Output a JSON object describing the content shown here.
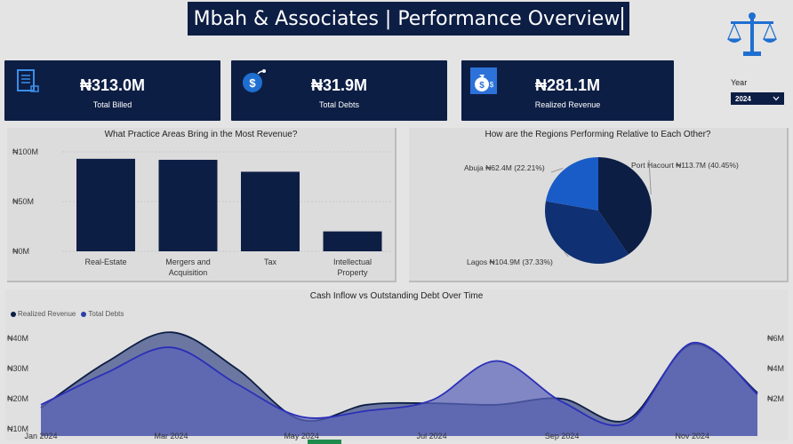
{
  "header": {
    "title": "Mbah & Associates | Performance Overview",
    "logo_icon": "scales-of-justice-icon"
  },
  "kpis": [
    {
      "value": "₦313.0M",
      "label": "Total Billed",
      "icon": "document-icon"
    },
    {
      "value": "₦31.9M",
      "label": "Total Debts",
      "icon": "money-bomb-icon"
    },
    {
      "value": "₦281.1M",
      "label": "Realized Revenue",
      "icon": "money-bag-icon"
    }
  ],
  "filter": {
    "label": "Year",
    "selected": "2024"
  },
  "bar_panel": {
    "title": "What Practice Areas Bring in the Most Revenue?"
  },
  "pie_panel": {
    "title": "How are the Regions Performing Relative to Each Other?"
  },
  "area_panel": {
    "title": "Cash Inflow vs Outstanding Debt Over Time",
    "legend": [
      {
        "name": "Realized Revenue",
        "color": "#0d1e45"
      },
      {
        "name": "Total Debts",
        "color": "#2f3ea8"
      }
    ]
  },
  "chart_data": [
    {
      "type": "bar",
      "title": "What Practice Areas Bring in the Most Revenue?",
      "categories": [
        "Real-Estate",
        "Mergers and Acquisition",
        "Tax",
        "Intellectual Property"
      ],
      "values": [
        93,
        92,
        80,
        20
      ],
      "ylim": [
        0,
        100
      ],
      "yticks": [
        "₦100M",
        "₦50M",
        "₦0M"
      ],
      "color": "#0d1e45"
    },
    {
      "type": "pie",
      "title": "How are the Regions Performing Relative to Each Other?",
      "slices": [
        {
          "name": "Port Hacourt",
          "value": 113.7,
          "label": "Port Hacourt ₦113.7M (40.45%)",
          "color": "#0d1e45"
        },
        {
          "name": "Lagos",
          "value": 104.9,
          "label": "Lagos ₦104.9M (37.33%)",
          "color": "#0f3072"
        },
        {
          "name": "Abuja",
          "value": 62.4,
          "label": "Abuja ₦62.4M (22.21%)",
          "color": "#1a5cc7"
        }
      ]
    },
    {
      "type": "area",
      "title": "Cash Inflow vs Outstanding Debt Over Time",
      "x_ticks": [
        "Jan 2024",
        "Mar 2024",
        "May 2024",
        "Jul 2024",
        "Sep 2024",
        "Nov 2024"
      ],
      "x": [
        "Jan 2024",
        "Feb 2024",
        "Mar 2024",
        "Apr 2024",
        "May 2024",
        "Jun 2024",
        "Jul 2024",
        "Aug 2024",
        "Sep 2024",
        "Oct 2024",
        "Nov 2024",
        "Dec 2024"
      ],
      "left_axis": {
        "ticks": [
          "₦40M",
          "₦30M",
          "₦20M",
          "₦10M"
        ],
        "ylim": [
          10,
          45
        ]
      },
      "right_axis": {
        "ticks": [
          "₦6M",
          "₦4M",
          "₦2M"
        ],
        "ylim": [
          0,
          7
        ]
      },
      "series": [
        {
          "name": "Realized Revenue",
          "axis": "left",
          "color": "#0d1e45",
          "fill": "#3d4e88",
          "values": [
            17,
            32,
            42,
            30,
            13,
            18,
            18.5,
            18,
            20,
            13,
            38,
            22
          ]
        },
        {
          "name": "Total Debts",
          "axis": "right",
          "color": "#2b2fb8",
          "fill": "#5a64b8",
          "values": [
            1.6,
            3.7,
            5.4,
            3.0,
            0.8,
            1.2,
            1.9,
            4.5,
            1.8,
            0.4,
            5.7,
            2.3
          ]
        }
      ]
    }
  ]
}
